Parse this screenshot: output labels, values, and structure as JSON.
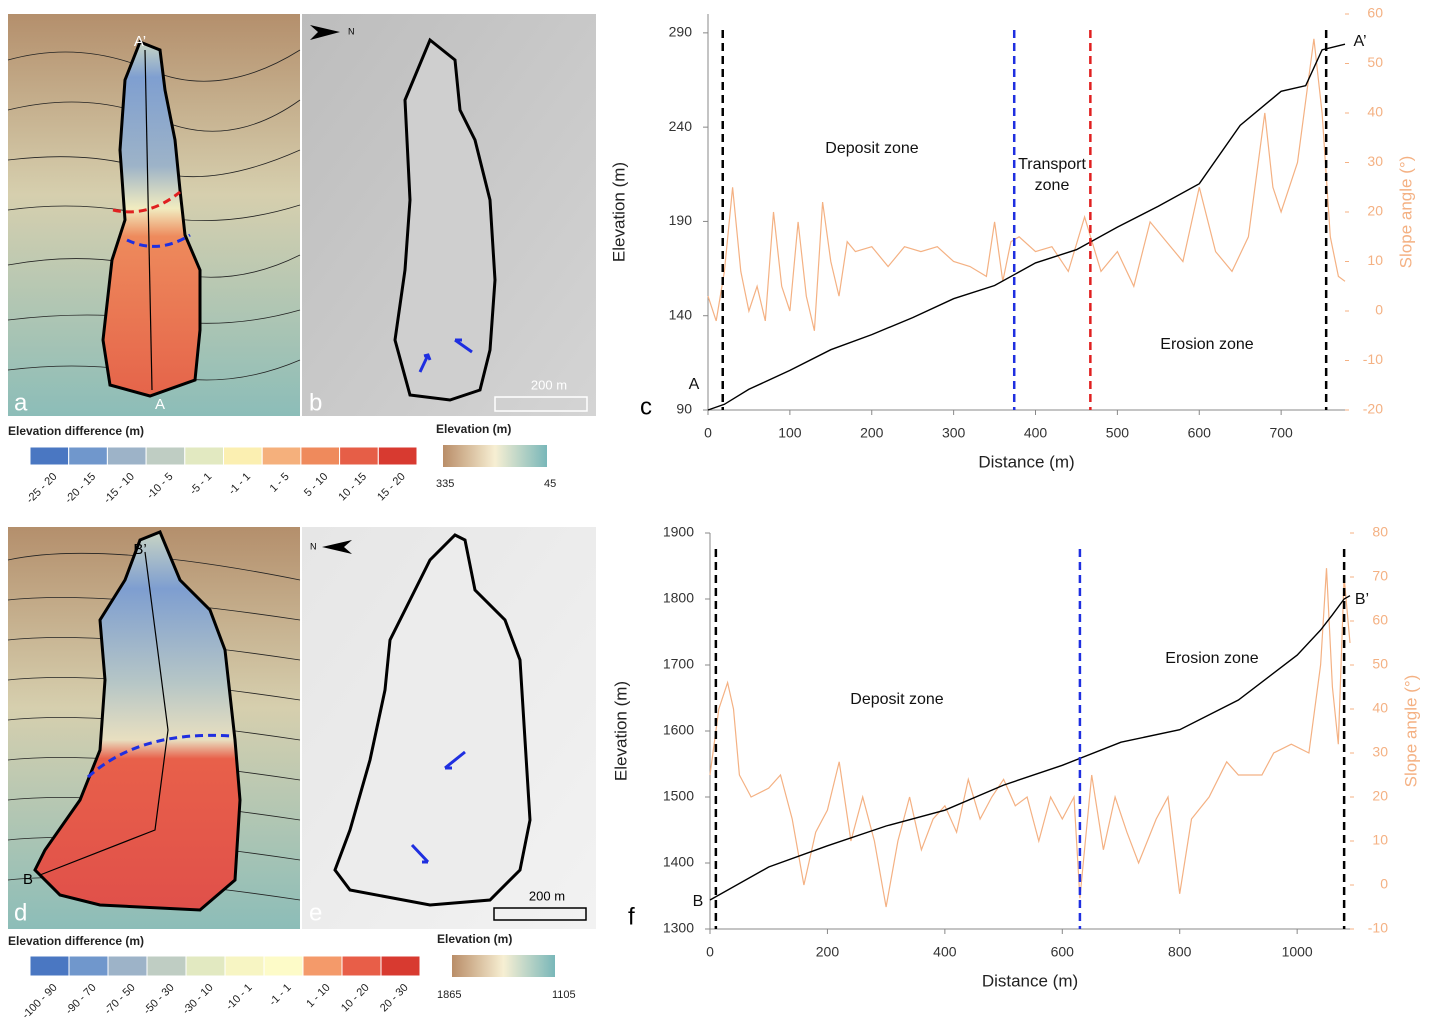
{
  "maps": [
    {
      "panels": [
        "a",
        "b"
      ],
      "point_top": "A’",
      "point_bottom": "A",
      "north": "N",
      "scale": "200 m",
      "legend": {
        "title": "Elevation difference (m)",
        "classes": [
          "-25 - 20",
          "-20 - 15",
          "-15 - 10",
          "-10 - 5",
          "-5 - 1",
          "-1 - 1",
          "1 - 5",
          "5 - 10",
          "10 - 15",
          "15 - 20"
        ],
        "colors": [
          "#4a77c2",
          "#7097cc",
          "#9db3c8",
          "#bfcdc3",
          "#e2e9c1",
          "#fbefb1",
          "#f5b07c",
          "#ef8a5c",
          "#e65e47",
          "#d83a30"
        ],
        "elev_title": "Elevation (m)",
        "elev_labels": [
          "335",
          "45"
        ],
        "elev_colors": [
          "#b98d68",
          "#f7efd3",
          "#79b7b9"
        ]
      }
    },
    {
      "panels": [
        "d",
        "e"
      ],
      "point_top": "B’",
      "point_bottom": "B",
      "north": "N",
      "scale": "200 m",
      "legend": {
        "title": "Elevation difference (m)",
        "classes": [
          "-100 - 90",
          "-90 - 70",
          "-70 - 50",
          "-50 - 30",
          "-30 - 10",
          "-10 - 1",
          "-1 - 1",
          "1 - 10",
          "10 - 20",
          "20 - 30"
        ],
        "colors": [
          "#4a77c2",
          "#7097cc",
          "#9db3c8",
          "#bfcdc3",
          "#e2e9c1",
          "#f7f5c3",
          "#fdfbc8",
          "#f49a6a",
          "#e85e48",
          "#d83a30"
        ],
        "elev_title": "Elevation (m)",
        "elev_labels": [
          "1865",
          "1105"
        ],
        "elev_colors": [
          "#b98d68",
          "#f7efd3",
          "#79b7b9"
        ]
      }
    }
  ],
  "chart_data": [
    {
      "type": "line",
      "panel": "c",
      "xlabel": "Distance (m)",
      "ylabel": "Elevation (m)",
      "y2label": "Slope angle (°)",
      "xlim": [
        0,
        778
      ],
      "xticks": [
        0,
        100,
        200,
        300,
        400,
        500,
        600,
        700
      ],
      "ylim": [
        90,
        300
      ],
      "yticks": [
        90,
        140,
        190,
        240,
        290
      ],
      "y2lim": [
        -20,
        60
      ],
      "y2ticks": [
        -20,
        -10,
        0,
        10,
        20,
        30,
        40,
        50,
        60
      ],
      "annotations": [
        "Deposit zone",
        "Transport",
        "zone",
        "Erosion zone",
        "A",
        "A’"
      ],
      "vlines": [
        {
          "x": 18,
          "color": "#000000"
        },
        {
          "x": 374,
          "color": "#1f2fe0"
        },
        {
          "x": 467,
          "color": "#e02020"
        },
        {
          "x": 755,
          "color": "#000000"
        }
      ],
      "series": [
        {
          "color": "#000000",
          "x": [
            0,
            20,
            50,
            100,
            150,
            200,
            250,
            300,
            350,
            400,
            450,
            500,
            550,
            600,
            650,
            700,
            730,
            750,
            778
          ],
          "values": [
            90,
            93,
            101,
            111,
            122,
            130,
            139,
            149,
            156,
            168,
            175,
            187,
            198,
            210,
            241,
            259,
            262,
            281,
            284
          ]
        },
        {
          "color": "#f4b183",
          "axis": "y2",
          "x": [
            0,
            10,
            20,
            30,
            40,
            50,
            60,
            70,
            80,
            90,
            100,
            110,
            120,
            130,
            140,
            150,
            160,
            170,
            180,
            200,
            220,
            240,
            260,
            280,
            300,
            320,
            340,
            350,
            360,
            370,
            380,
            400,
            420,
            440,
            460,
            480,
            500,
            520,
            540,
            560,
            580,
            600,
            620,
            640,
            660,
            680,
            690,
            700,
            720,
            740,
            750,
            760,
            770,
            778
          ],
          "values": [
            3,
            -2,
            8,
            25,
            8,
            0,
            5,
            -2,
            20,
            5,
            0,
            18,
            3,
            -4,
            22,
            10,
            3,
            14,
            12,
            13,
            9,
            13,
            12,
            13,
            10,
            9,
            7,
            18,
            6,
            14,
            15,
            12,
            13,
            8,
            19,
            8,
            12,
            5,
            18,
            14,
            10,
            25,
            12,
            8,
            15,
            40,
            25,
            20,
            30,
            55,
            40,
            15,
            7,
            6
          ]
        }
      ]
    },
    {
      "type": "line",
      "panel": "f",
      "xlabel": "Distance (m)",
      "ylabel": "Elevation (m)",
      "y2label": "Slope angle (°)",
      "xlim": [
        0,
        1090
      ],
      "xticks": [
        0,
        200,
        400,
        600,
        800,
        1000
      ],
      "ylim": [
        1300,
        1900
      ],
      "yticks": [
        1300,
        1400,
        1500,
        1600,
        1700,
        1800,
        1900
      ],
      "y2lim": [
        -10,
        80
      ],
      "y2ticks": [
        -10,
        0,
        10,
        20,
        30,
        40,
        50,
        60,
        70,
        80
      ],
      "annotations": [
        "Deposit zone",
        "Erosion zone",
        "B",
        "B’"
      ],
      "vlines": [
        {
          "x": 10,
          "color": "#000000"
        },
        {
          "x": 630,
          "color": "#1f2fe0"
        },
        {
          "x": 1080,
          "color": "#000000"
        }
      ],
      "series": [
        {
          "color": "#000000",
          "x": [
            0,
            100,
            200,
            300,
            400,
            500,
            600,
            700,
            800,
            900,
            1000,
            1040,
            1060,
            1080,
            1090
          ],
          "values": [
            1344,
            1394,
            1426,
            1456,
            1480,
            1518,
            1548,
            1583,
            1602,
            1647,
            1715,
            1753,
            1776,
            1800,
            1805
          ]
        },
        {
          "color": "#f4b183",
          "axis": "y2",
          "x": [
            0,
            15,
            30,
            40,
            50,
            70,
            100,
            120,
            140,
            160,
            180,
            200,
            220,
            240,
            260,
            280,
            300,
            320,
            340,
            360,
            380,
            400,
            420,
            440,
            460,
            480,
            500,
            520,
            540,
            560,
            580,
            600,
            620,
            630,
            650,
            670,
            690,
            710,
            730,
            760,
            780,
            800,
            820,
            850,
            880,
            900,
            940,
            960,
            990,
            1020,
            1040,
            1050,
            1060,
            1070,
            1080,
            1090
          ],
          "values": [
            25,
            40,
            46,
            40,
            25,
            20,
            22,
            25,
            15,
            0,
            12,
            17,
            28,
            10,
            20,
            10,
            -5,
            10,
            20,
            8,
            15,
            18,
            12,
            24,
            15,
            20,
            24,
            18,
            20,
            10,
            20,
            15,
            20,
            -3,
            25,
            8,
            20,
            12,
            5,
            15,
            20,
            -2,
            15,
            20,
            28,
            25,
            25,
            30,
            32,
            30,
            50,
            72,
            45,
            32,
            70,
            55
          ]
        }
      ]
    }
  ]
}
